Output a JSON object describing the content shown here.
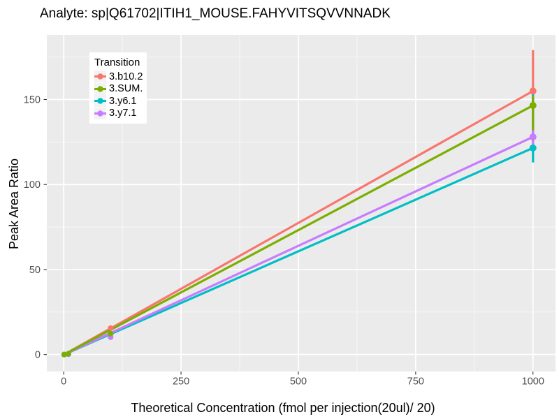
{
  "chart_data": {
    "type": "line",
    "title": "Analyte: sp|Q61702|ITIH1_MOUSE.FAHYVITSQVVNNADK",
    "xlabel": "Theoretical Concentration (fmol per injection(20ul)/ 20)",
    "ylabel": "Peak Area Ratio",
    "xlim": [
      -36,
      1048
    ],
    "ylim": [
      -10,
      188
    ],
    "x_ticks": [
      0,
      250,
      500,
      750,
      1000
    ],
    "y_ticks": [
      0,
      50,
      100,
      150
    ],
    "x_minor_gridlines": [
      125,
      375,
      625,
      875
    ],
    "y_minor_gridlines": [
      25,
      75,
      125,
      175
    ],
    "grid": "on",
    "panel_bg": "#EBEBEB",
    "gridline_color": "#FFFFFF",
    "tick_label_color": "#4D4D4D",
    "legend_title": "Transition",
    "legend_position": "top-left-inside",
    "series": [
      {
        "name": "3.b10.2",
        "color": "#F8766D",
        "line": {
          "x": [
            1,
            1000
          ],
          "y": [
            0,
            155
          ]
        },
        "points": [
          [
            1,
            0
          ],
          [
            10,
            0.3
          ],
          [
            100,
            15.5
          ],
          [
            1000,
            155
          ]
        ],
        "error_bar": {
          "x": 1000,
          "low": 131,
          "high": 179
        }
      },
      {
        "name": "3.SUM.",
        "color": "#7CAE00",
        "line": {
          "x": [
            1,
            1000
          ],
          "y": [
            0,
            146.5
          ]
        },
        "points": [
          [
            1,
            0
          ],
          [
            10,
            0.5
          ],
          [
            100,
            12.3
          ],
          [
            1000,
            146.5
          ]
        ],
        "error_bar": {
          "x": 1000,
          "low": 132,
          "high": 152
        }
      },
      {
        "name": "3.y6.1",
        "color": "#00BFC4",
        "line": {
          "x": [
            1,
            1000
          ],
          "y": [
            0,
            121.5
          ]
        },
        "points": [
          [
            1,
            0
          ],
          [
            10,
            0.2
          ],
          [
            100,
            12.1
          ],
          [
            1000,
            121.5
          ]
        ],
        "error_bar": {
          "x": 1000,
          "low": 113,
          "high": 154
        }
      },
      {
        "name": "3.y7.1",
        "color": "#C77CFF",
        "line": {
          "x": [
            1,
            1000
          ],
          "y": [
            0,
            128
          ]
        },
        "points": [
          [
            1,
            0
          ],
          [
            10,
            0.3
          ],
          [
            100,
            10.2
          ],
          [
            1000,
            128
          ]
        ],
        "error_bar": {
          "x": 1000,
          "low": 120,
          "high": 136
        }
      }
    ]
  }
}
